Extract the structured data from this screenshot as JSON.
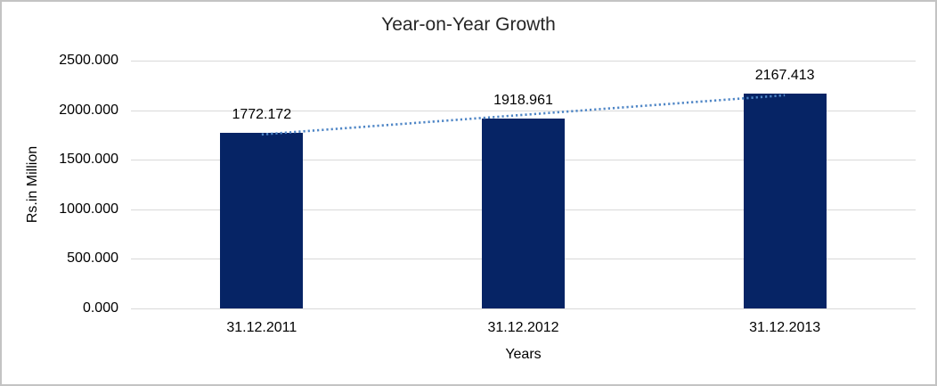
{
  "chart_data": {
    "type": "bar",
    "title": "Year-on-Year Growth",
    "categories": [
      "31.12.2011",
      "31.12.2012",
      "31.12.2013"
    ],
    "values": [
      1772.172,
      1918.961,
      2167.413
    ],
    "data_labels": [
      "1772.172",
      "1918.961",
      "2167.413"
    ],
    "xlabel": "Years",
    "ylabel": "Rs.in Million",
    "ylim": [
      0,
      2500
    ],
    "yticks": [
      0,
      500,
      1000,
      1500,
      2000,
      2500
    ],
    "ytick_labels": [
      "0.000",
      "500.000",
      "1000.000",
      "1500.000",
      "2000.000",
      "2500.000"
    ],
    "grid": "horizontal",
    "legend": "none",
    "bar_color": "#062465",
    "gridline_color": "#d9d9d9",
    "text_color": "#000000",
    "frame_color": "#c3c3c3",
    "trendline": {
      "type": "linear",
      "style": "dotted",
      "color": "#4f86c6",
      "start_value": 1755.2,
      "end_value": 2150.5
    }
  }
}
